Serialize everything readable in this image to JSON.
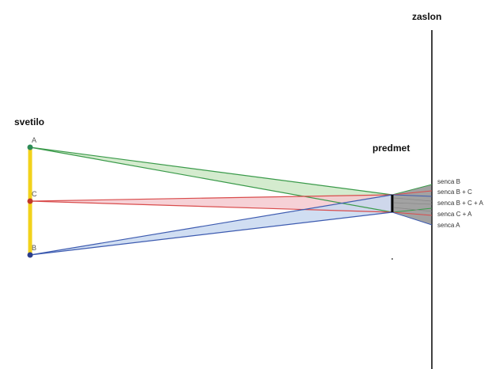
{
  "labels": {
    "light": "svetilo",
    "object": "predmet",
    "screen": "zaslon"
  },
  "points": [
    {
      "name": "A",
      "color": "#2e8b57"
    },
    {
      "name": "C",
      "color": "#c0392b"
    },
    {
      "name": "B",
      "color": "#2c3e8c"
    }
  ],
  "shadows": [
    "senca B",
    "senca B + C",
    "senca B + C + A",
    "senca C + A",
    "senca A"
  ],
  "colors": {
    "light_bar": "#f2d21b",
    "ray_a": "#3a9a4a",
    "ray_c": "#d94c4c",
    "ray_b": "#3d5bb0",
    "fill_a": "#cde8c6",
    "fill_c": "#f5c9cf",
    "fill_b": "#c8d8f0",
    "screen": "#111111"
  }
}
